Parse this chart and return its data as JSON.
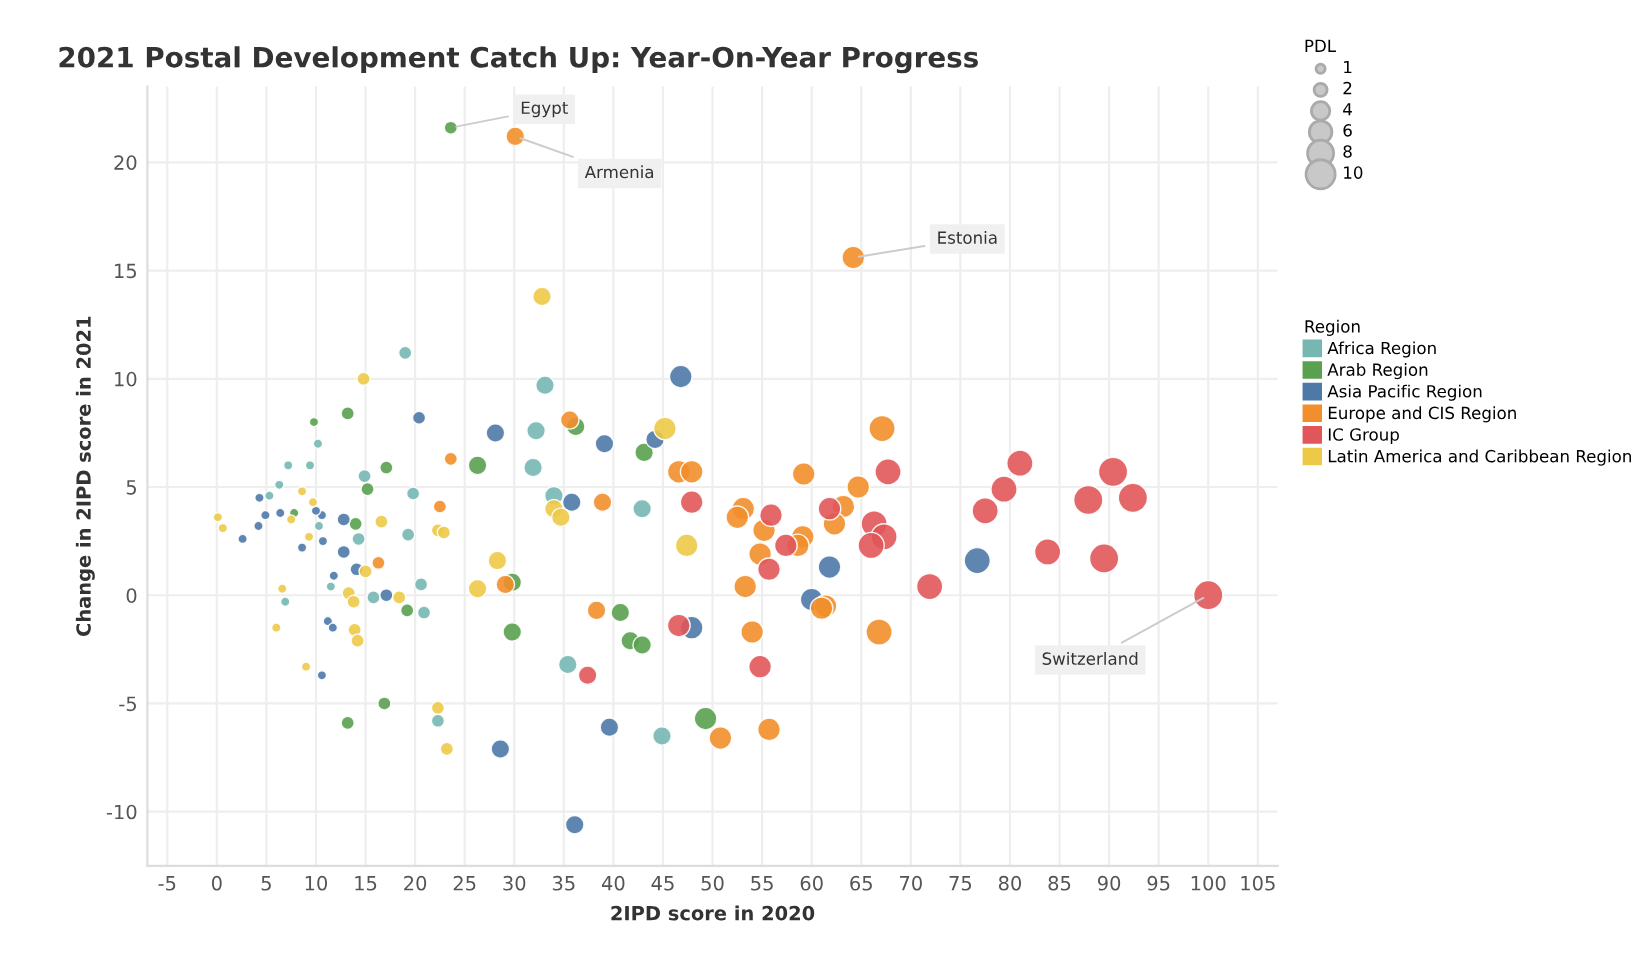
{
  "chart_data": {
    "type": "bubble",
    "title": "2021 Postal Development Catch Up: Year-On-Year Progress",
    "xlabel": "2IPD score in 2020",
    "ylabel": "Change in 2IPD score in 2021",
    "legend_title": "Region",
    "xlim": [
      -7,
      107
    ],
    "xticks": [
      -5,
      0,
      5,
      10,
      15,
      20,
      25,
      30,
      35,
      40,
      45,
      50,
      55,
      60,
      65,
      70,
      75,
      80,
      85,
      90,
      95,
      100,
      105
    ],
    "ylim": [
      -12.5,
      23.5
    ],
    "yticks": [
      -10,
      -5,
      0,
      5,
      10,
      15,
      20
    ],
    "grid": true,
    "legend": "right",
    "size_legend": [
      1,
      2,
      4,
      6,
      8,
      10
    ],
    "annotations": [
      "PDL",
      {
        "text": "Egypt",
        "x": 23.6,
        "y": 21.6
      },
      {
        "text": "Armenia",
        "x": 30.1,
        "y": 21.2
      },
      {
        "text": "Estonia",
        "x": 64.2,
        "y": 15.6
      },
      {
        "text": "Switzerland",
        "x": 100,
        "y": 0
      }
    ],
    "series": [
      {
        "name": "Africa Region",
        "color": "#76b7b2",
        "x": [
          19.0,
          33.1,
          32.2,
          31.9,
          34.0,
          42.9,
          35.4,
          44.9,
          20.6,
          20.9,
          19.8,
          19.3,
          14.9,
          14.3,
          15.8,
          10.2,
          9.4,
          7.2,
          6.3,
          5.3,
          10.3,
          11.5,
          6.9,
          22.3
        ],
        "values": [
          11.2,
          9.7,
          7.6,
          5.9,
          4.6,
          4.0,
          -3.2,
          -6.5,
          0.5,
          -0.8,
          4.7,
          2.8,
          5.5,
          2.6,
          -0.1,
          7.0,
          6.0,
          6.0,
          5.1,
          4.6,
          3.2,
          0.4,
          -0.3,
          -5.8
        ],
        "sizes": [
          2,
          4,
          4,
          4,
          4,
          4,
          4,
          4,
          2,
          2,
          2,
          2,
          2,
          2,
          2,
          1,
          1,
          1,
          1,
          1,
          1,
          1,
          1,
          2
        ]
      },
      {
        "name": "Arab Region",
        "color": "#59a14f",
        "x": [
          23.6,
          9.8,
          13.2,
          15.2,
          17.1,
          26.3,
          29.8,
          29.8,
          36.2,
          43.1,
          40.7,
          41.7,
          42.9,
          49.3,
          19.2,
          14.0,
          7.8,
          16.9,
          13.2
        ],
        "values": [
          21.6,
          8.0,
          8.4,
          4.9,
          5.9,
          6.0,
          0.6,
          -1.7,
          7.8,
          6.6,
          -0.8,
          -2.1,
          -2.3,
          -5.7,
          -0.7,
          3.3,
          3.8,
          -5.0,
          -5.9
        ],
        "sizes": [
          2,
          1,
          2,
          2,
          2,
          4,
          4,
          4,
          4,
          4,
          4,
          4,
          4,
          6,
          2,
          2,
          1,
          2,
          2
        ]
      },
      {
        "name": "Asia Pacific Region",
        "color": "#4e79a7",
        "x": [
          20.4,
          28.1,
          39.1,
          44.2,
          46.8,
          35.8,
          47.9,
          39.6,
          28.6,
          36.1,
          17.1,
          14.1,
          12.8,
          12.8,
          11.8,
          11.2,
          11.7,
          8.6,
          10.7,
          10.6,
          10.0,
          6.4,
          4.9,
          4.2,
          4.3,
          2.6,
          10.6,
          61.8,
          60.0,
          76.7
        ],
        "values": [
          8.2,
          7.5,
          7.0,
          7.2,
          10.1,
          4.3,
          -1.5,
          -6.1,
          -7.1,
          -10.6,
          0.0,
          1.2,
          2.0,
          3.5,
          0.9,
          -1.2,
          -1.5,
          2.2,
          2.5,
          3.7,
          3.9,
          3.8,
          3.7,
          3.2,
          4.5,
          2.6,
          -3.7,
          1.3,
          -0.2,
          1.6
        ],
        "sizes": [
          2,
          4,
          4,
          4,
          6,
          4,
          6,
          4,
          4,
          4,
          2,
          2,
          2,
          2,
          1,
          1,
          1,
          1,
          1,
          1,
          1,
          1,
          1,
          1,
          1,
          1,
          1,
          6,
          6,
          8
        ]
      },
      {
        "name": "Europe and CIS Region",
        "color": "#f28e2b",
        "x": [
          30.1,
          23.6,
          22.5,
          16.3,
          35.6,
          38.9,
          38.3,
          29.1,
          46.6,
          47.9,
          64.2,
          67.1,
          59.2,
          64.7,
          63.2,
          62.3,
          59.1,
          58.6,
          53.1,
          52.5,
          55.2,
          54.8,
          53.3,
          61.4,
          61.0,
          54.0,
          66.8,
          55.7,
          50.8
        ],
        "values": [
          21.2,
          6.3,
          4.1,
          1.5,
          8.1,
          4.3,
          -0.7,
          0.5,
          5.7,
          5.7,
          15.6,
          7.7,
          5.6,
          5.0,
          4.1,
          3.3,
          2.7,
          2.3,
          4.0,
          3.6,
          3.0,
          1.9,
          0.4,
          -0.5,
          -0.6,
          -1.7,
          -1.7,
          -6.2,
          -6.6
        ],
        "sizes": [
          4,
          2,
          2,
          2,
          4,
          4,
          4,
          4,
          6,
          6,
          6,
          8,
          6,
          6,
          6,
          6,
          6,
          6,
          6,
          6,
          6,
          6,
          6,
          6,
          6,
          6,
          8,
          6,
          6
        ]
      },
      {
        "name": "IC Group",
        "color": "#e15759",
        "x": [
          47.9,
          46.6,
          37.4,
          55.9,
          55.7,
          54.8,
          57.4,
          61.8,
          66.3,
          67.3,
          66.0,
          67.7,
          71.9,
          77.5,
          79.4,
          81.0,
          83.8,
          87.9,
          90.4,
          92.4,
          89.5,
          100
        ],
        "values": [
          4.3,
          -1.4,
          -3.7,
          3.7,
          1.2,
          -3.3,
          2.3,
          4.0,
          3.3,
          2.7,
          2.3,
          5.7,
          0.4,
          3.9,
          4.9,
          6.1,
          2.0,
          4.4,
          5.7,
          4.5,
          1.7,
          0
        ],
        "sizes": [
          6,
          6,
          4,
          6,
          6,
          6,
          6,
          6,
          8,
          8,
          8,
          8,
          8,
          8,
          8,
          8,
          8,
          10,
          10,
          10,
          10,
          10
        ]
      },
      {
        "name": "Latin America and Caribbean Region",
        "color": "#edc948",
        "x": [
          32.8,
          14.8,
          45.2,
          47.4,
          34.0,
          34.7,
          16.6,
          22.3,
          22.9,
          28.3,
          26.3,
          8.6,
          9.7,
          9.3,
          7.5,
          13.3,
          13.8,
          15.0,
          18.4,
          13.9,
          14.2,
          6.0,
          6.6,
          9.0,
          22.3,
          23.2,
          0.1,
          0.6
        ],
        "values": [
          13.8,
          10.0,
          7.7,
          2.3,
          4.0,
          3.6,
          3.4,
          3.0,
          2.9,
          1.6,
          0.3,
          4.8,
          4.3,
          2.7,
          3.5,
          0.1,
          -0.3,
          1.1,
          -0.1,
          -1.6,
          -2.1,
          -1.5,
          0.3,
          -3.3,
          -5.2,
          -7.1,
          3.6,
          3.1
        ],
        "sizes": [
          4,
          2,
          6,
          6,
          4,
          4,
          2,
          2,
          2,
          4,
          4,
          1,
          1,
          1,
          1,
          2,
          2,
          2,
          2,
          2,
          2,
          1,
          1,
          1,
          2,
          2,
          1,
          1
        ]
      }
    ]
  }
}
